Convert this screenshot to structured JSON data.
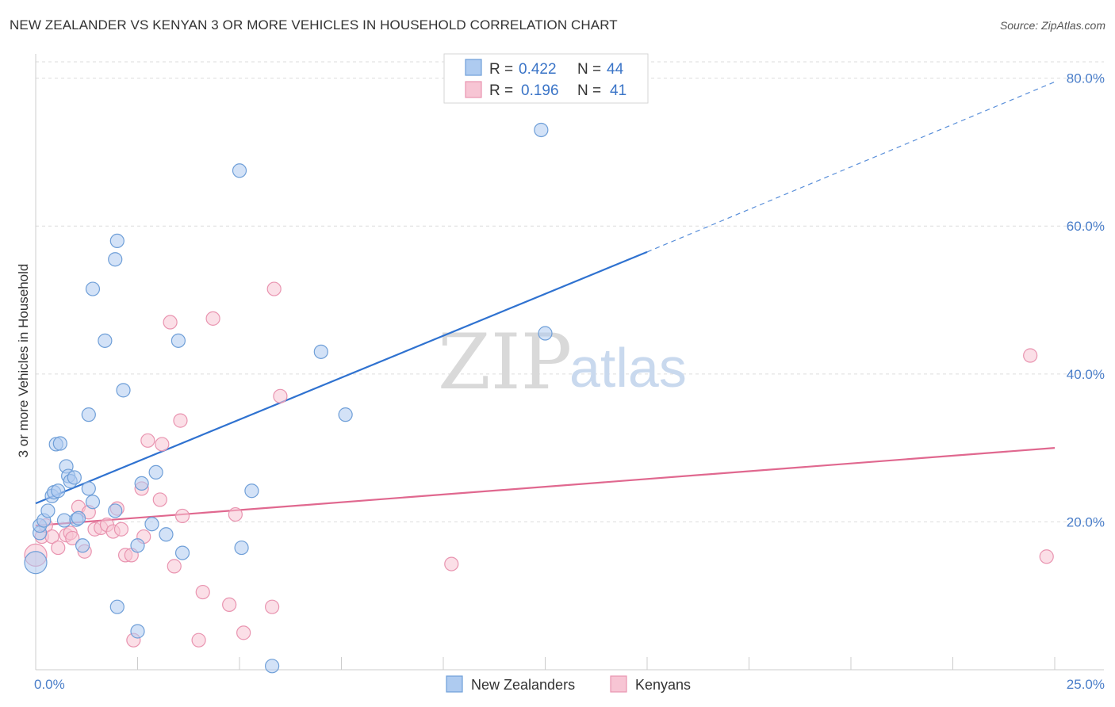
{
  "title": "NEW ZEALANDER VS KENYAN 3 OR MORE VEHICLES IN HOUSEHOLD CORRELATION CHART",
  "source": "Source: ZipAtlas.com",
  "watermark": {
    "zip": "ZIP",
    "atlas": "atlas"
  },
  "legend_top": [
    {
      "r_label": "R =",
      "r_value": "0.422",
      "n_label": "N =",
      "n_value": "44"
    },
    {
      "r_label": "R =",
      "r_value": "0.196",
      "n_label": "N =",
      "n_value": "41"
    }
  ],
  "legend_bottom": [
    "New Zealanders",
    "Kenyans"
  ],
  "colors": {
    "blue_fill": "#aecbf0",
    "blue_stroke": "#6f9fd8",
    "blue_line": "#2f72d0",
    "pink_fill": "#f7c5d4",
    "pink_stroke": "#e994b0",
    "pink_line": "#e0688f",
    "grid": "#dddddd",
    "tick_text": "#4a7ec9"
  },
  "chart_data": {
    "type": "scatter",
    "title": "NEW ZEALANDER VS KENYAN 3 OR MORE VEHICLES IN HOUSEHOLD CORRELATION CHART",
    "xlabel": "",
    "ylabel": "3 or more Vehicles in Household",
    "xlim": [
      0,
      25
    ],
    "ylim": [
      0,
      82
    ],
    "x_tick_labels": [
      "0.0%",
      "25.0%"
    ],
    "y_ticks": [
      20,
      40,
      60,
      80
    ],
    "y_tick_labels": [
      "20.0%",
      "40.0%",
      "60.0%",
      "80.0%"
    ],
    "grid": true,
    "legend_placement": "top-center",
    "series": [
      {
        "name": "New Zealanders",
        "color": "#aecbf0",
        "trend": {
          "x0": 0,
          "y0": 22.5,
          "x1": 15,
          "y1": 56.5,
          "dashed_to_x": 25,
          "dashed_to_y": 79.5
        },
        "points": [
          {
            "x": 0.0,
            "y": 14.5,
            "big": true
          },
          {
            "x": 0.1,
            "y": 18.5
          },
          {
            "x": 0.1,
            "y": 19.5
          },
          {
            "x": 0.2,
            "y": 20.2
          },
          {
            "x": 0.3,
            "y": 21.5
          },
          {
            "x": 0.4,
            "y": 23.5
          },
          {
            "x": 0.45,
            "y": 24.0
          },
          {
            "x": 0.55,
            "y": 24.2
          },
          {
            "x": 0.5,
            "y": 30.5
          },
          {
            "x": 0.6,
            "y": 30.6
          },
          {
            "x": 0.7,
            "y": 20.2
          },
          {
            "x": 0.75,
            "y": 27.5
          },
          {
            "x": 0.8,
            "y": 26.2
          },
          {
            "x": 0.85,
            "y": 25.5
          },
          {
            "x": 0.95,
            "y": 26.0
          },
          {
            "x": 1.0,
            "y": 20.3
          },
          {
            "x": 1.05,
            "y": 20.5
          },
          {
            "x": 1.15,
            "y": 16.8
          },
          {
            "x": 1.3,
            "y": 24.5
          },
          {
            "x": 1.3,
            "y": 34.5
          },
          {
            "x": 1.4,
            "y": 22.7
          },
          {
            "x": 1.4,
            "y": 51.5
          },
          {
            "x": 1.7,
            "y": 44.5
          },
          {
            "x": 1.95,
            "y": 21.5
          },
          {
            "x": 1.95,
            "y": 55.5
          },
          {
            "x": 2.0,
            "y": 58.0
          },
          {
            "x": 2.0,
            "y": 8.5
          },
          {
            "x": 2.15,
            "y": 37.8
          },
          {
            "x": 2.5,
            "y": 16.8
          },
          {
            "x": 2.5,
            "y": 5.2
          },
          {
            "x": 2.6,
            "y": 25.2
          },
          {
            "x": 2.85,
            "y": 19.7
          },
          {
            "x": 2.95,
            "y": 26.7
          },
          {
            "x": 3.2,
            "y": 18.3
          },
          {
            "x": 3.5,
            "y": 44.5
          },
          {
            "x": 3.6,
            "y": 15.8
          },
          {
            "x": 5.0,
            "y": 67.5
          },
          {
            "x": 5.05,
            "y": 16.5
          },
          {
            "x": 5.3,
            "y": 24.2
          },
          {
            "x": 5.8,
            "y": 0.5
          },
          {
            "x": 7.0,
            "y": 43.0
          },
          {
            "x": 7.6,
            "y": 34.5
          },
          {
            "x": 12.4,
            "y": 73.0
          },
          {
            "x": 12.5,
            "y": 45.5
          }
        ]
      },
      {
        "name": "Kenyans",
        "color": "#f7c5d4",
        "trend": {
          "x0": 0,
          "y0": 19.5,
          "x1": 25,
          "y1": 30.0
        },
        "points": [
          {
            "x": 0.0,
            "y": 15.5,
            "big": true
          },
          {
            "x": 0.15,
            "y": 18.0
          },
          {
            "x": 0.25,
            "y": 19.5
          },
          {
            "x": 0.4,
            "y": 18.0
          },
          {
            "x": 0.55,
            "y": 16.5
          },
          {
            "x": 0.75,
            "y": 18.2
          },
          {
            "x": 0.85,
            "y": 18.5
          },
          {
            "x": 0.9,
            "y": 17.8
          },
          {
            "x": 1.05,
            "y": 22.0
          },
          {
            "x": 1.2,
            "y": 16.0
          },
          {
            "x": 1.3,
            "y": 21.3
          },
          {
            "x": 1.45,
            "y": 19.0
          },
          {
            "x": 1.6,
            "y": 19.2
          },
          {
            "x": 1.75,
            "y": 19.6
          },
          {
            "x": 1.9,
            "y": 18.7
          },
          {
            "x": 2.0,
            "y": 21.8
          },
          {
            "x": 2.1,
            "y": 19.0
          },
          {
            "x": 2.2,
            "y": 15.5
          },
          {
            "x": 2.35,
            "y": 15.5
          },
          {
            "x": 2.4,
            "y": 4.0
          },
          {
            "x": 2.6,
            "y": 24.5
          },
          {
            "x": 2.65,
            "y": 18.0
          },
          {
            "x": 2.75,
            "y": 31.0
          },
          {
            "x": 3.05,
            "y": 23.0
          },
          {
            "x": 3.1,
            "y": 30.5
          },
          {
            "x": 3.3,
            "y": 47.0
          },
          {
            "x": 3.4,
            "y": 14.0
          },
          {
            "x": 3.55,
            "y": 33.7
          },
          {
            "x": 3.6,
            "y": 20.8
          },
          {
            "x": 4.0,
            "y": 4.0
          },
          {
            "x": 4.1,
            "y": 10.5
          },
          {
            "x": 4.35,
            "y": 47.5
          },
          {
            "x": 4.75,
            "y": 8.8
          },
          {
            "x": 4.9,
            "y": 21.0
          },
          {
            "x": 5.1,
            "y": 5.0
          },
          {
            "x": 5.8,
            "y": 8.5
          },
          {
            "x": 5.85,
            "y": 51.5
          },
          {
            "x": 6.0,
            "y": 37.0
          },
          {
            "x": 10.2,
            "y": 14.3
          },
          {
            "x": 24.4,
            "y": 42.5
          },
          {
            "x": 24.8,
            "y": 15.3
          }
        ]
      }
    ]
  }
}
